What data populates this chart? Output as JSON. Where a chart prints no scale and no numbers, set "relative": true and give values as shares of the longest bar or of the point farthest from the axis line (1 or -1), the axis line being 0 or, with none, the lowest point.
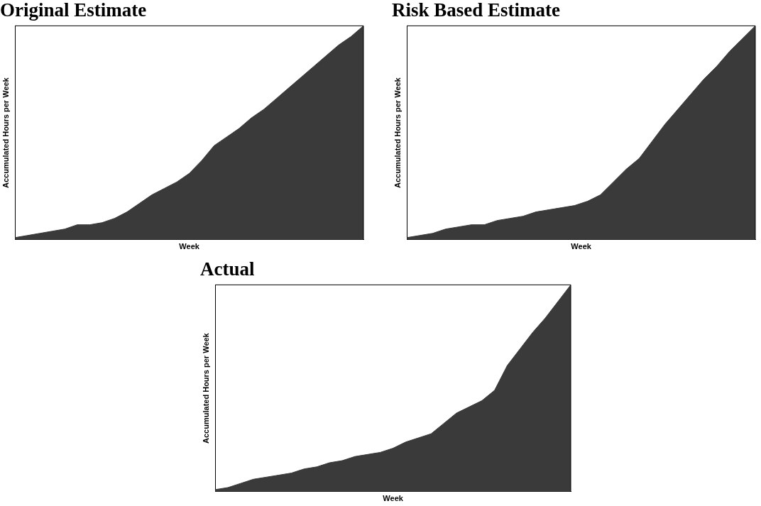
{
  "chart_data": [
    {
      "type": "area",
      "title": "Original Estimate",
      "xlabel": "Week",
      "ylabel": "Accumulated Hours per Week",
      "relative": true,
      "legend": false,
      "color": "#3a3a3a",
      "categories": [
        null,
        null,
        null,
        null,
        null,
        null,
        null,
        null,
        null,
        null,
        null,
        null,
        null,
        null,
        null,
        null,
        null,
        null,
        null,
        null,
        null,
        null,
        null,
        null,
        null,
        null,
        null,
        null,
        null
      ],
      "values": [
        0.01,
        0.02,
        0.03,
        0.04,
        0.05,
        0.07,
        0.07,
        0.08,
        0.1,
        0.13,
        0.17,
        0.21,
        0.24,
        0.27,
        0.31,
        0.37,
        0.44,
        0.48,
        0.52,
        0.57,
        0.61,
        0.66,
        0.71,
        0.76,
        0.81,
        0.86,
        0.91,
        0.95,
        1
      ]
    },
    {
      "type": "area",
      "title": "Risk Based Estimate",
      "xlabel": "Week",
      "ylabel": "Accumulated Hours per Week",
      "relative": true,
      "legend": false,
      "color": "#3a3a3a",
      "categories": [
        null,
        null,
        null,
        null,
        null,
        null,
        null,
        null,
        null,
        null,
        null,
        null,
        null,
        null,
        null,
        null,
        null,
        null,
        null,
        null,
        null,
        null,
        null,
        null,
        null,
        null,
        null,
        null
      ],
      "values": [
        0.01,
        0.02,
        0.03,
        0.05,
        0.06,
        0.07,
        0.07,
        0.09,
        0.1,
        0.11,
        0.13,
        0.14,
        0.15,
        0.16,
        0.18,
        0.21,
        0.27,
        0.33,
        0.38,
        0.46,
        0.54,
        0.61,
        0.68,
        0.75,
        0.81,
        0.88,
        0.94,
        1
      ]
    },
    {
      "type": "area",
      "title": "Actual",
      "xlabel": "Week",
      "ylabel": "Accumulated Hours per Week",
      "relative": true,
      "legend": false,
      "color": "#3a3a3a",
      "categories": [
        null,
        null,
        null,
        null,
        null,
        null,
        null,
        null,
        null,
        null,
        null,
        null,
        null,
        null,
        null,
        null,
        null,
        null,
        null,
        null,
        null,
        null,
        null,
        null,
        null,
        null,
        null,
        null,
        null
      ],
      "values": [
        0.01,
        0.02,
        0.04,
        0.06,
        0.07,
        0.08,
        0.09,
        0.11,
        0.12,
        0.14,
        0.15,
        0.17,
        0.18,
        0.19,
        0.21,
        0.24,
        0.26,
        0.28,
        0.33,
        0.38,
        0.41,
        0.44,
        0.49,
        0.61,
        0.69,
        0.77,
        0.84,
        0.92,
        1
      ]
    }
  ]
}
